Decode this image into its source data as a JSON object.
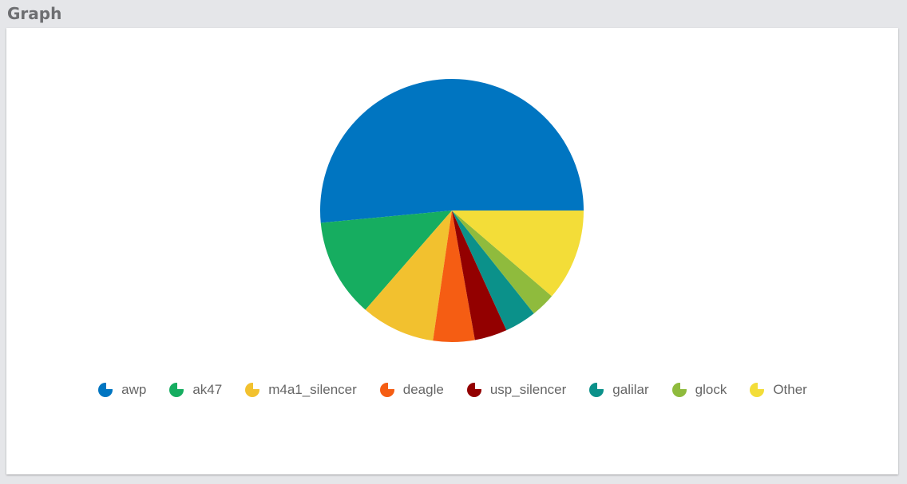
{
  "chart_data": {
    "type": "pie",
    "title": "Graph",
    "categories": [
      "awp",
      "ak47",
      "m4a1_silencer",
      "deagle",
      "usp_silencer",
      "galilar",
      "glock",
      "Other"
    ],
    "values": [
      51.5,
      12.1,
      9.1,
      5.1,
      4.0,
      3.9,
      3.0,
      11.3
    ],
    "colors": [
      "#0075c1",
      "#16ad60",
      "#f2c12f",
      "#f55d13",
      "#930000",
      "#0b918a",
      "#8fbb3d",
      "#f3dd38"
    ]
  }
}
